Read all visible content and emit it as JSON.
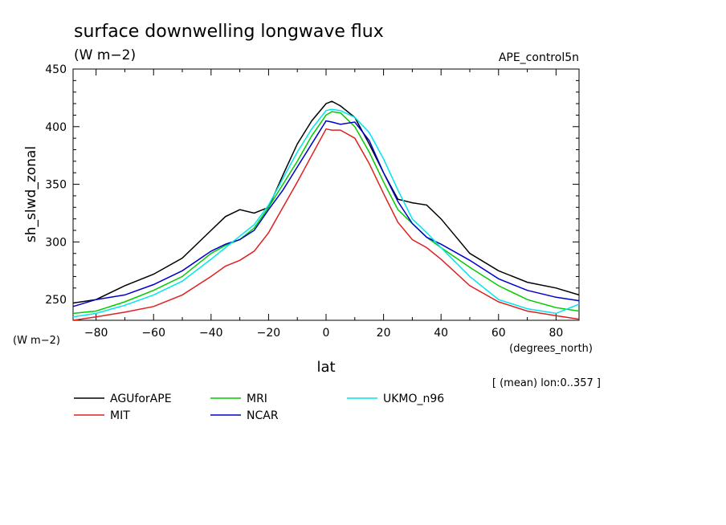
{
  "header": {
    "title": "surface downwelling longwave flux",
    "units": "(W m−2)",
    "experiment": "APE_control5n"
  },
  "axes": {
    "y_axis_label": "sh_slwd_zonal",
    "y_units_label": "(W m−2)",
    "x_axis_label": "lat",
    "x_units_label": "(degrees_north)",
    "footnote": "[ (mean) lon:0..357 ]"
  },
  "chart_data": {
    "type": "line",
    "title": "surface downwelling longwave flux",
    "xlabel": "lat",
    "ylabel": "sh_slwd_zonal",
    "xlim": [
      -88,
      88
    ],
    "ylim": [
      232,
      450
    ],
    "xticks": [
      -80,
      -60,
      -40,
      -20,
      0,
      20,
      40,
      60,
      80
    ],
    "yticks": [
      250,
      300,
      350,
      400,
      450
    ],
    "x": [
      -88,
      -80,
      -70,
      -60,
      -50,
      -40,
      -35,
      -30,
      -25,
      -20,
      -15,
      -10,
      -5,
      0,
      2,
      5,
      10,
      15,
      20,
      25,
      30,
      35,
      40,
      50,
      60,
      70,
      80,
      88
    ],
    "series": [
      {
        "name": "AGUforAPE",
        "color": "#000000",
        "values": [
          247,
          250,
          262,
          272,
          286,
          310,
          322,
          328,
          325,
          330,
          358,
          385,
          405,
          420,
          422,
          418,
          408,
          385,
          360,
          337,
          334,
          332,
          320,
          290,
          275,
          265,
          260,
          254
        ]
      },
      {
        "name": "MIT",
        "color": "#e02020",
        "values": [
          232,
          235,
          239,
          244,
          254,
          270,
          279,
          284,
          292,
          308,
          330,
          352,
          375,
          398,
          397,
          397,
          390,
          368,
          342,
          317,
          302,
          295,
          285,
          262,
          248,
          240,
          236,
          233
        ]
      },
      {
        "name": "MRI",
        "color": "#00cc00",
        "values": [
          238,
          240,
          248,
          258,
          270,
          290,
          297,
          302,
          312,
          330,
          350,
          370,
          392,
          410,
          413,
          412,
          400,
          378,
          352,
          328,
          316,
          304,
          295,
          278,
          262,
          250,
          243,
          240
        ]
      },
      {
        "name": "NCAR",
        "color": "#0000cc",
        "values": [
          244,
          250,
          254,
          263,
          275,
          292,
          298,
          302,
          310,
          328,
          345,
          365,
          385,
          405,
          404,
          402,
          404,
          388,
          360,
          335,
          316,
          304,
          298,
          284,
          268,
          258,
          252,
          249
        ]
      },
      {
        "name": "UKMO_n96",
        "color": "#00e5ee",
        "values": [
          235,
          238,
          245,
          254,
          266,
          285,
          295,
          305,
          315,
          332,
          355,
          378,
          398,
          414,
          415,
          414,
          408,
          395,
          372,
          345,
          320,
          308,
          295,
          270,
          250,
          242,
          238,
          246
        ]
      }
    ]
  }
}
